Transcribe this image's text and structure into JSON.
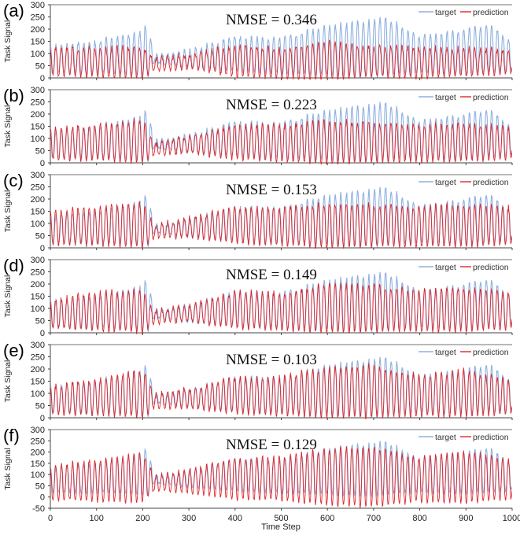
{
  "figure": {
    "xlabel": "Time Step",
    "ylabel": "Task Signal",
    "legend": {
      "target_label": "target",
      "prediction_label": "prediction"
    }
  },
  "colors": {
    "target": "#8fb0df",
    "prediction": "#e0252a",
    "axis": "#444444"
  },
  "chart_data": [
    {
      "type": "line",
      "panel": "(a)",
      "annotation": "NMSE = 0.346",
      "xlabel": "",
      "ylabel": "Task Signal",
      "xlim": [
        0,
        1000
      ],
      "ylim": [
        0,
        300
      ],
      "yticks": [
        0,
        50,
        100,
        150,
        200,
        250,
        300
      ],
      "legend_position": "top-right",
      "series": [
        {
          "name": "target",
          "description_values": {
            "x": [
              0,
              100,
              200,
              210,
              225,
              300,
              400,
              500,
              600,
              700,
              725,
              800,
              900,
              950,
              1000
            ],
            "peak": [
              130,
              150,
              190,
              230,
              90,
              110,
              170,
              165,
              215,
              235,
              250,
              170,
              200,
              225,
              140
            ],
            "trough": [
              20,
              20,
              10,
              0,
              60,
              45,
              25,
              20,
              10,
              5,
              10,
              20,
              15,
              20,
              30
            ]
          }
        },
        {
          "name": "prediction",
          "description_values": {
            "x": [
              0,
              100,
              200,
              225,
              300,
              400,
              500,
              600,
              700,
              800,
              900,
              1000
            ],
            "peak": [
              125,
              120,
              125,
              80,
              95,
              130,
              120,
              145,
              130,
              125,
              120,
              110
            ],
            "trough": [
              10,
              5,
              0,
              30,
              40,
              5,
              0,
              -10,
              5,
              0,
              5,
              20
            ]
          }
        }
      ]
    },
    {
      "type": "line",
      "panel": "(b)",
      "annotation": "NMSE = 0.223",
      "xlabel": "",
      "ylabel": "Task Signal",
      "xlim": [
        0,
        1000
      ],
      "ylim": [
        0,
        300
      ],
      "yticks": [
        0,
        50,
        100,
        150,
        200,
        250,
        300
      ],
      "legend_position": "top-right",
      "series": [
        {
          "name": "target",
          "description_values": {
            "x": [
              0,
              100,
              200,
              210,
              225,
              300,
              400,
              500,
              600,
              700,
              725,
              800,
              900,
              950,
              1000
            ],
            "peak": [
              130,
              150,
              190,
              230,
              90,
              110,
              170,
              165,
              215,
              235,
              250,
              170,
              200,
              225,
              140
            ],
            "trough": [
              20,
              20,
              10,
              0,
              60,
              45,
              25,
              20,
              10,
              5,
              10,
              20,
              15,
              20,
              30
            ]
          }
        },
        {
          "name": "prediction",
          "description_values": {
            "x": [
              0,
              100,
              200,
              225,
              300,
              400,
              500,
              600,
              700,
              800,
              900,
              1000
            ],
            "peak": [
              140,
              155,
              175,
              75,
              110,
              150,
              155,
              170,
              165,
              155,
              160,
              145
            ],
            "trough": [
              15,
              10,
              0,
              35,
              40,
              15,
              5,
              -5,
              5,
              5,
              5,
              15
            ]
          }
        }
      ]
    },
    {
      "type": "line",
      "panel": "(c)",
      "annotation": "NMSE = 0.153",
      "xlabel": "",
      "ylabel": "Task Signal",
      "xlim": [
        0,
        1000
      ],
      "ylim": [
        0,
        300
      ],
      "yticks": [
        0,
        50,
        100,
        150,
        200,
        250,
        300
      ],
      "legend_position": "top-right",
      "series": [
        {
          "name": "target",
          "description_values": {
            "x": [
              0,
              100,
              200,
              210,
              225,
              300,
              400,
              500,
              600,
              700,
              725,
              800,
              900,
              950,
              1000
            ],
            "peak": [
              130,
              150,
              190,
              230,
              90,
              110,
              170,
              165,
              215,
              235,
              250,
              170,
              200,
              225,
              140
            ],
            "trough": [
              20,
              20,
              10,
              0,
              60,
              45,
              25,
              20,
              10,
              5,
              10,
              20,
              15,
              20,
              30
            ]
          }
        },
        {
          "name": "prediction",
          "description_values": {
            "x": [
              0,
              100,
              200,
              225,
              300,
              400,
              500,
              600,
              700,
              800,
              900,
              1000
            ],
            "peak": [
              150,
              165,
              185,
              90,
              125,
              165,
              165,
              180,
              175,
              170,
              175,
              165
            ],
            "trough": [
              15,
              10,
              0,
              40,
              45,
              20,
              10,
              0,
              5,
              5,
              5,
              15
            ]
          }
        }
      ]
    },
    {
      "type": "line",
      "panel": "(d)",
      "annotation": "NMSE = 0.149",
      "xlabel": "",
      "ylabel": "Task Signal",
      "xlim": [
        0,
        1000
      ],
      "ylim": [
        0,
        300
      ],
      "yticks": [
        0,
        50,
        100,
        150,
        200,
        250,
        300
      ],
      "legend_position": "top-right",
      "series": [
        {
          "name": "target",
          "description_values": {
            "x": [
              0,
              100,
              200,
              210,
              225,
              300,
              400,
              500,
              600,
              700,
              725,
              800,
              900,
              950,
              1000
            ],
            "peak": [
              130,
              150,
              190,
              230,
              90,
              110,
              170,
              165,
              215,
              235,
              250,
              170,
              200,
              225,
              140
            ],
            "trough": [
              20,
              20,
              10,
              0,
              60,
              45,
              25,
              20,
              10,
              5,
              10,
              20,
              15,
              20,
              30
            ]
          }
        },
        {
          "name": "prediction",
          "description_values": {
            "x": [
              0,
              100,
              200,
              225,
              300,
              400,
              500,
              600,
              700,
              800,
              900,
              1000
            ],
            "peak": [
              130,
              165,
              175,
              90,
              115,
              165,
              165,
              195,
              195,
              170,
              185,
              160
            ],
            "trough": [
              20,
              10,
              0,
              40,
              45,
              20,
              10,
              0,
              5,
              5,
              5,
              15
            ]
          }
        }
      ]
    },
    {
      "type": "line",
      "panel": "(e)",
      "annotation": "NMSE = 0.103",
      "xlabel": "",
      "ylabel": "Task Signal",
      "xlim": [
        0,
        1000
      ],
      "ylim": [
        0,
        300
      ],
      "yticks": [
        0,
        50,
        100,
        150,
        200,
        250,
        300
      ],
      "legend_position": "top-right",
      "series": [
        {
          "name": "target",
          "description_values": {
            "x": [
              0,
              100,
              200,
              210,
              225,
              300,
              400,
              500,
              600,
              700,
              725,
              800,
              900,
              950,
              1000
            ],
            "peak": [
              130,
              150,
              190,
              230,
              90,
              110,
              170,
              165,
              215,
              235,
              250,
              170,
              200,
              225,
              140
            ],
            "trough": [
              20,
              20,
              10,
              0,
              60,
              45,
              25,
              20,
              10,
              5,
              10,
              20,
              15,
              20,
              30
            ]
          }
        },
        {
          "name": "prediction",
          "description_values": {
            "x": [
              0,
              100,
              200,
              225,
              300,
              400,
              500,
              600,
              700,
              800,
              900,
              1000
            ],
            "peak": [
              130,
              160,
              200,
              95,
              120,
              165,
              165,
              210,
              215,
              170,
              195,
              150
            ],
            "trough": [
              15,
              10,
              0,
              40,
              40,
              15,
              10,
              0,
              0,
              5,
              5,
              15
            ]
          }
        }
      ]
    },
    {
      "type": "line",
      "panel": "(f)",
      "annotation": "NMSE = 0.129",
      "xlabel": "Time Step",
      "ylabel": "Task Signal",
      "xlim": [
        0,
        1000
      ],
      "ylim": [
        -50,
        300
      ],
      "xticks": [
        0,
        100,
        200,
        300,
        400,
        500,
        600,
        700,
        800,
        900,
        1000
      ],
      "yticks": [
        -50,
        0,
        50,
        100,
        150,
        200,
        250,
        300
      ],
      "legend_position": "top-right",
      "series": [
        {
          "name": "target",
          "description_values": {
            "x": [
              0,
              100,
              200,
              210,
              225,
              300,
              400,
              500,
              600,
              700,
              725,
              800,
              900,
              950,
              1000
            ],
            "peak": [
              130,
              150,
              190,
              230,
              90,
              110,
              170,
              165,
              215,
              235,
              250,
              170,
              200,
              225,
              140
            ],
            "trough": [
              20,
              20,
              10,
              0,
              60,
              45,
              25,
              20,
              10,
              5,
              10,
              20,
              15,
              20,
              30
            ]
          }
        },
        {
          "name": "prediction",
          "description_values": {
            "x": [
              0,
              100,
              200,
              225,
              300,
              400,
              500,
              600,
              700,
              800,
              900,
              1000
            ],
            "peak": [
              135,
              165,
              195,
              95,
              120,
              175,
              175,
              215,
              220,
              175,
              200,
              160
            ],
            "trough": [
              -10,
              -20,
              -25,
              30,
              20,
              -10,
              -15,
              -35,
              -45,
              -20,
              -25,
              -10
            ]
          }
        }
      ]
    }
  ]
}
